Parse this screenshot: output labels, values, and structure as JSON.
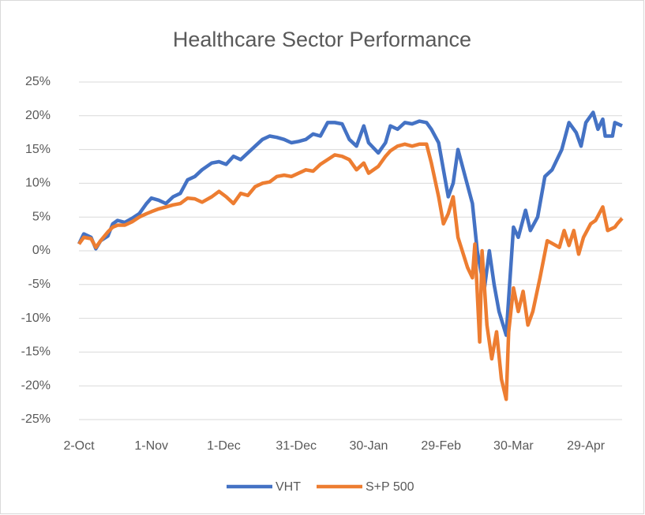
{
  "chart_data": {
    "type": "line",
    "title": "Healthcare Sector Performance",
    "series": [
      {
        "name": "VHT",
        "color": "#4472c4",
        "x": [
          0,
          2,
          5,
          7,
          9,
          12,
          14,
          16,
          19,
          22,
          25,
          28,
          30,
          33,
          36,
          39,
          42,
          45,
          48,
          51,
          55,
          58,
          61,
          64,
          67,
          70,
          73,
          76,
          79,
          82,
          85,
          88,
          91,
          94,
          97,
          100,
          103,
          106,
          109,
          112,
          115,
          118,
          120,
          124,
          127,
          129,
          132,
          135,
          138,
          141,
          144,
          146,
          149,
          151,
          153,
          155,
          157,
          160,
          163,
          165,
          167,
          168,
          170,
          172,
          174,
          177,
          180,
          182,
          185,
          187,
          190,
          193,
          196,
          200,
          203,
          206,
          208,
          210,
          213,
          215,
          217,
          218,
          221,
          222,
          225
        ],
        "values": [
          1,
          2.5,
          2,
          0.3,
          1.5,
          2.2,
          4,
          4.5,
          4.2,
          4.8,
          5.5,
          7,
          7.8,
          7.5,
          7,
          8,
          8.5,
          10.5,
          11,
          12,
          13,
          13.2,
          12.8,
          14,
          13.5,
          14.5,
          15.5,
          16.5,
          17,
          16.8,
          16.5,
          16,
          16.2,
          16.5,
          17.3,
          17,
          19,
          19,
          18.8,
          16.5,
          15.5,
          18.5,
          16,
          14.5,
          16,
          18.5,
          18,
          19,
          18.8,
          19.2,
          19,
          18,
          16,
          12,
          8,
          10,
          15,
          11,
          7,
          0,
          -4,
          -5.5,
          0,
          -5,
          -9,
          -12.5,
          3.5,
          2,
          6,
          3,
          5,
          11,
          12,
          15,
          19,
          17.5,
          15.5,
          19,
          20.5,
          18,
          19.5,
          17,
          17,
          19,
          18.5
        ]
      },
      {
        "name": "S+P 500",
        "color": "#ed7d31",
        "x": [
          0,
          2,
          5,
          7,
          9,
          12,
          14,
          16,
          19,
          22,
          25,
          28,
          30,
          33,
          36,
          39,
          42,
          45,
          48,
          51,
          55,
          58,
          61,
          64,
          67,
          70,
          73,
          76,
          79,
          82,
          85,
          88,
          91,
          94,
          97,
          100,
          103,
          106,
          109,
          112,
          115,
          118,
          120,
          124,
          127,
          129,
          132,
          135,
          138,
          141,
          144,
          146,
          149,
          151,
          153,
          155,
          157,
          161,
          163,
          164,
          166,
          167,
          169,
          171,
          173,
          175,
          177,
          178,
          180,
          182,
          184,
          186,
          188,
          191,
          194,
          199,
          201,
          203,
          205,
          207,
          209,
          212,
          214,
          217,
          219,
          222,
          223,
          225
        ],
        "values": [
          1,
          2,
          1.8,
          0.5,
          1.5,
          2.8,
          3.5,
          3.8,
          3.8,
          4.3,
          5,
          5.5,
          5.8,
          6.2,
          6.5,
          6.8,
          7,
          7.8,
          7.7,
          7.2,
          8,
          8.8,
          8,
          7,
          8.5,
          8.2,
          9.5,
          10,
          10.2,
          11,
          11.2,
          11,
          11.5,
          12,
          11.8,
          12.8,
          13.5,
          14.2,
          14,
          13.5,
          12,
          13,
          11.5,
          12.5,
          14,
          14.8,
          15.5,
          15.8,
          15.5,
          15.8,
          15.8,
          13,
          8,
          4,
          5.5,
          8,
          2,
          -2.5,
          -4,
          1,
          -13.5,
          0,
          -11,
          -16,
          -12,
          -19,
          -22,
          -12,
          -5.5,
          -9,
          -6,
          -11,
          -9,
          -4,
          1.5,
          0.5,
          3,
          0.8,
          3,
          -0.5,
          2,
          4,
          4.5,
          6.5,
          3,
          3.5,
          4,
          4.8
        ]
      }
    ],
    "xlim": [
      0,
      225
    ],
    "xticks": [
      {
        "value": 0,
        "label": "2-Oct"
      },
      {
        "value": 30,
        "label": "1-Nov"
      },
      {
        "value": 60,
        "label": "1-Dec"
      },
      {
        "value": 90,
        "label": "31-Dec"
      },
      {
        "value": 120,
        "label": "30-Jan"
      },
      {
        "value": 150,
        "label": "29-Feb"
      },
      {
        "value": 180,
        "label": "30-Mar"
      },
      {
        "value": 210,
        "label": "29-Apr"
      }
    ],
    "ylim": [
      -25,
      25
    ],
    "yticks": [
      {
        "value": -25,
        "label": "-25%"
      },
      {
        "value": -20,
        "label": "-20%"
      },
      {
        "value": -15,
        "label": "-15%"
      },
      {
        "value": -10,
        "label": "-10%"
      },
      {
        "value": -5,
        "label": "-5%"
      },
      {
        "value": 0,
        "label": "0%"
      },
      {
        "value": 5,
        "label": "5%"
      },
      {
        "value": 10,
        "label": "10%"
      },
      {
        "value": 15,
        "label": "15%"
      },
      {
        "value": 20,
        "label": "20%"
      },
      {
        "value": 25,
        "label": "25%"
      }
    ],
    "grid": true,
    "legend": "bottom"
  }
}
